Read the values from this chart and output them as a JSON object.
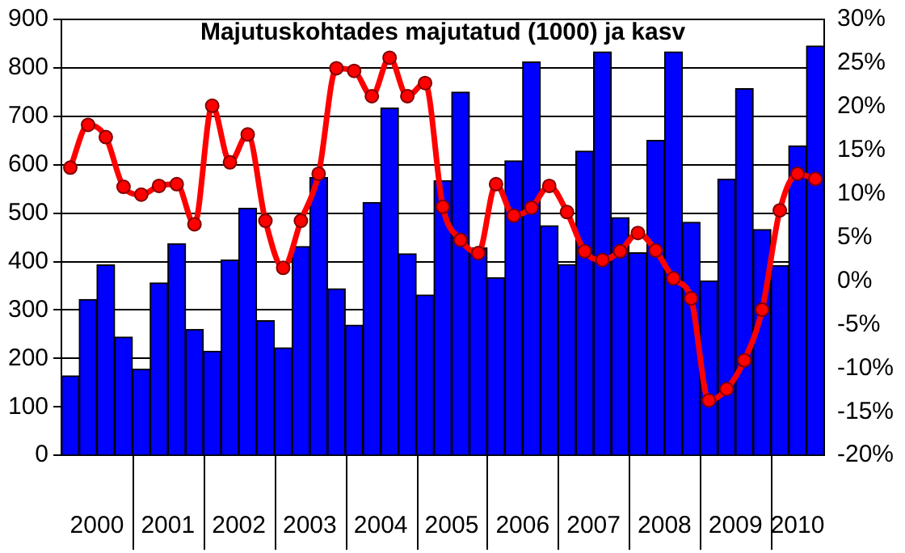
{
  "chart_data": {
    "type": "bar",
    "title": "Majutuskohtades majutatud (1000) ja kasv",
    "categories": [
      null,
      null,
      null,
      null,
      null,
      null,
      null,
      null,
      null,
      null,
      null,
      null,
      null,
      null,
      null,
      null,
      null,
      null,
      null,
      null,
      null,
      null,
      null,
      null,
      null,
      null,
      null,
      null,
      null,
      null,
      null,
      null,
      null,
      null,
      null,
      null,
      null,
      null,
      null,
      null,
      null,
      null,
      null
    ],
    "series": [
      {
        "color": "#0000ff",
        "values": [
          164,
          322,
          393,
          244,
          178,
          356,
          437,
          260,
          215,
          403,
          510,
          278,
          222,
          431,
          574,
          344,
          269,
          522,
          717,
          416,
          331,
          567,
          750,
          428,
          367,
          608,
          812,
          474,
          394,
          628,
          833,
          491,
          418,
          650,
          833,
          481,
          360,
          570,
          757,
          466,
          392,
          639,
          845
        ]
      },
      {
        "type": "line",
        "axis": "y2",
        "color": "#ff0000",
        "marker": "circle",
        "line_style": "solid",
        "values": [
          13.0,
          17.9,
          16.5,
          10.8,
          9.9,
          10.9,
          11.1,
          6.5,
          20.1,
          13.6,
          16.8,
          6.9,
          1.5,
          6.9,
          12.3,
          24.4,
          24.1,
          21.2,
          25.6,
          21.2,
          22.7,
          8.5,
          4.7,
          3.2,
          11.1,
          7.5,
          8.4,
          10.9,
          7.9,
          3.4,
          2.4,
          3.4,
          5.5,
          3.5,
          0.3,
          -2.0,
          -13.7,
          -12.4,
          -9.1,
          -3.3,
          8.1,
          12.3,
          11.7
        ]
      }
    ],
    "ylim": [
      0,
      900
    ],
    "yticks": [
      0,
      100,
      200,
      300,
      400,
      500,
      600,
      700,
      800,
      900
    ],
    "y2lim": [
      -20,
      30
    ],
    "y2ticks": [
      {
        "value": -20,
        "label": "-20%"
      },
      {
        "value": -15,
        "label": "-15%"
      },
      {
        "value": -10,
        "label": "-10%"
      },
      {
        "value": -5,
        "label": "-5%"
      },
      {
        "value": 0,
        "label": "0%"
      },
      {
        "value": 5,
        "label": "5%"
      },
      {
        "value": 10,
        "label": "10%"
      },
      {
        "value": 15,
        "label": "15%"
      },
      {
        "value": 20,
        "label": "20%"
      },
      {
        "value": 25,
        "label": "25%"
      },
      {
        "value": 30,
        "label": "30%"
      }
    ],
    "annotations": [
      "2000",
      "2001",
      "2002",
      "2003",
      "2004",
      "2005",
      "2006",
      "2007",
      "2008",
      "2009",
      "2010"
    ],
    "grid": "y",
    "legend": false
  }
}
